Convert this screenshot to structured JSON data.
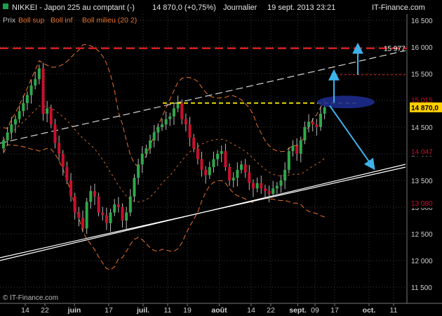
{
  "header": {
    "symbol": "NIKKEI - Japon 225 au comptant (-)",
    "last": "14 870,0 (+0,75%)",
    "period": "Journalier",
    "datetime": "19 sept. 2013 23:21",
    "source": "IT-Finance.com"
  },
  "indicator_legend": {
    "price_label": "Prix",
    "series": [
      {
        "label": "Boll sup",
        "color": "#e8722a"
      },
      {
        "label": "Boll inf",
        "color": "#e8722a"
      },
      {
        "label": "Boll milieu (20 2)",
        "color": "#e8722a"
      }
    ]
  },
  "copyright": "© IT-Finance.com",
  "colors": {
    "background": "#000000",
    "grid": "#3a3a3a",
    "candle_up": "#2ea84a",
    "candle_down": "#c8102e",
    "bollinger": "#e8722a",
    "resistance": "#d21e1e",
    "support_box": "#e5d800",
    "arrow": "#3fb2ec",
    "target_ellipse": "#1d2b8c"
  },
  "chart_data": {
    "type": "candlestick",
    "instrument": "NIKKEI - Japon 225 au comptant",
    "period": "Journalier",
    "ylim": [
      11000,
      16500
    ],
    "y_ticks": [
      16500,
      16000,
      15500,
      15000,
      14500,
      14000,
      13500,
      13000,
      12500,
      12000,
      11500
    ],
    "x_ticks": [
      {
        "label": "14",
        "x": "2013-05-14"
      },
      {
        "label": "22",
        "x": "2013-05-22"
      },
      {
        "label": "juin",
        "x": "2013-06-03"
      },
      {
        "label": "17",
        "x": "2013-06-17"
      },
      {
        "label": "juil.",
        "x": "2013-07-01"
      },
      {
        "label": "11",
        "x": "2013-07-11"
      },
      {
        "label": "19",
        "x": "2013-07-19"
      },
      {
        "label": "août",
        "x": "2013-08-01"
      },
      {
        "label": "14",
        "x": "2013-08-14"
      },
      {
        "label": "22",
        "x": "2013-08-22"
      },
      {
        "label": "sept.",
        "x": "2013-09-02"
      },
      {
        "label": "09",
        "x": "2013-09-09"
      },
      {
        "label": "17",
        "x": "2013-09-17"
      },
      {
        "label": "oct.",
        "x": "2013-10-01"
      },
      {
        "label": "11",
        "x": "2013-10-11"
      }
    ],
    "closes": [
      14250,
      14400,
      14550,
      14650,
      14800,
      14950,
      15100,
      15280,
      15400,
      15600,
      14750,
      14850,
      14550,
      14200,
      14000,
      13750,
      13500,
      13200,
      12900,
      12800,
      12600,
      13100,
      13300,
      13200,
      12900,
      12850,
      12700,
      12900,
      13050,
      13000,
      12750,
      12900,
      13200,
      13550,
      13800,
      14000,
      14100,
      14250,
      14400,
      14500,
      14550,
      14650,
      14700,
      14850,
      14950,
      14650,
      14550,
      14300,
      14100,
      13900,
      13700,
      13600,
      13750,
      13900,
      14000,
      14050,
      13750,
      13500,
      13550,
      13700,
      13800,
      13650,
      13450,
      13350,
      13450,
      13350,
      13300,
      13250,
      13350,
      13400,
      13500,
      13700,
      14050,
      14150,
      14000,
      14250,
      14500,
      14600,
      14550,
      14500,
      14750,
      14870
    ],
    "price_labels": [
      {
        "text": "15 977",
        "value": 15977,
        "kind": "level"
      },
      {
        "text": "15 015",
        "value": 15015,
        "kind": "axis"
      },
      {
        "text": "14 870,0",
        "value": 14870,
        "kind": "last"
      },
      {
        "text": "14 047",
        "value": 14047,
        "kind": "axis"
      },
      {
        "text": "13 080",
        "value": 13080,
        "kind": "axis"
      }
    ],
    "resistance_level": 15977,
    "support_level": 14950
  }
}
